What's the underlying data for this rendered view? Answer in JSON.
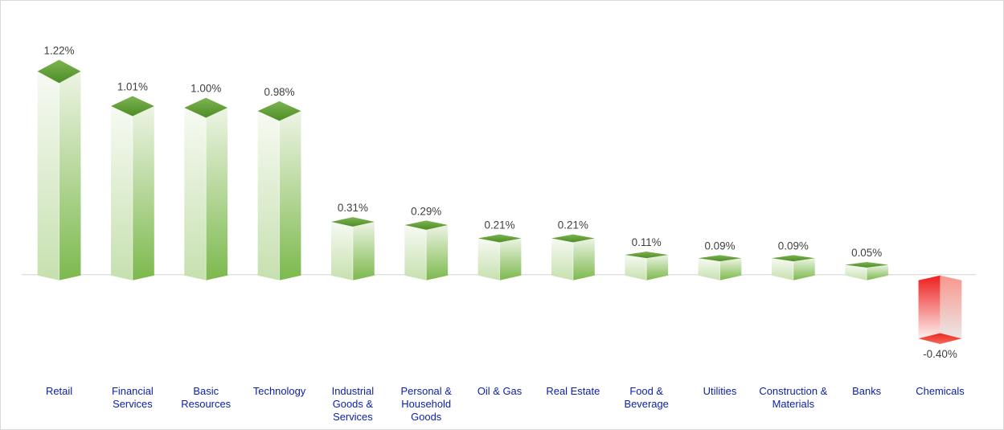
{
  "page": {
    "background": "#FFFFFF",
    "frame_border_color": "#D9D9D9"
  },
  "chart_data": {
    "type": "bar",
    "bar_style": "3d-box",
    "title": "",
    "xlabel": "",
    "ylabel": "",
    "unit": "%",
    "grid": false,
    "legend": false,
    "baseline_value": 0,
    "ylim": [
      -0.6,
      1.45
    ],
    "categories": [
      "Retail",
      "Financial Services",
      "Basic Resources",
      "Technology",
      "Industrial Goods & Services",
      "Personal & Household Goods",
      "Oil & Gas",
      "Real Estate",
      "Food & Beverage",
      "Utilities",
      "Construction & Materials",
      "Banks",
      "Chemicals"
    ],
    "category_lines": [
      [
        "Retail"
      ],
      [
        "Financial",
        "Services"
      ],
      [
        "Basic",
        "Resources"
      ],
      [
        "Technology"
      ],
      [
        "Industrial",
        "Goods &",
        "Services"
      ],
      [
        "Personal &",
        "Household",
        "Goods"
      ],
      [
        "Oil & Gas"
      ],
      [
        "Real Estate"
      ],
      [
        "Food &",
        "Beverage"
      ],
      [
        "Utilities"
      ],
      [
        "Construction &",
        "Materials"
      ],
      [
        "Banks"
      ],
      [
        "Chemicals"
      ]
    ],
    "values": [
      1.22,
      1.01,
      1.0,
      0.98,
      0.31,
      0.29,
      0.21,
      0.21,
      0.11,
      0.09,
      0.09,
      0.05,
      -0.4
    ],
    "value_labels": [
      "1.22%",
      "1.01%",
      "1.00%",
      "0.98%",
      "0.31%",
      "0.29%",
      "0.21%",
      "0.21%",
      "0.11%",
      "0.09%",
      "0.09%",
      "0.05%",
      "-0.40%"
    ],
    "colors": {
      "value_label_text": "#3F3F3F",
      "category_text": "#0A1FA8",
      "axis_line": "#D3D3D3",
      "positive_base": "#76B143",
      "negative_base": "#EE2321",
      "gradients": {
        "green_left_face": [
          "#F7FAF3",
          "#C6E0AF"
        ],
        "green_right_face": [
          "#EDF4E4",
          "#7CB94D"
        ],
        "green_top_diamond": [
          "#7DB453",
          "#4E8D24"
        ],
        "red_left_face": [
          "#EE1E1D",
          "#FCF0EE"
        ],
        "red_right_face": [
          "#F8968D",
          "#EBE7E5"
        ],
        "red_bottom_diamond": [
          "#EF271E",
          "#F4695D"
        ]
      }
    }
  }
}
